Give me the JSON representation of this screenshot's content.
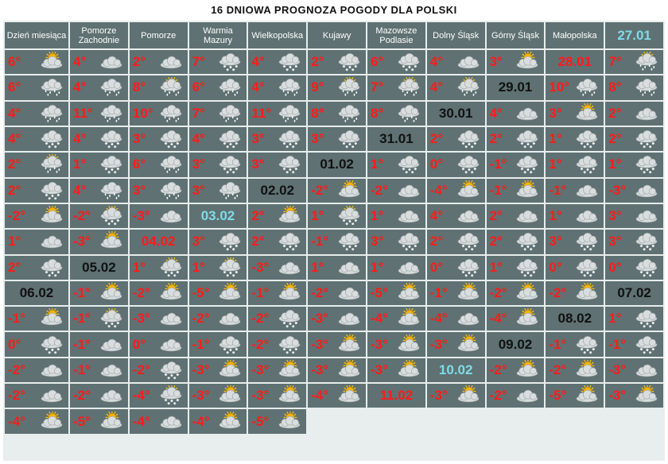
{
  "title": "16 DNIOWA PROGNOZA POGODY DLA POLSKI",
  "chart_data": {
    "type": "table",
    "header": {
      "date_label": "Dzień miesiąca",
      "regions": [
        "Pomorze Zachodnie",
        "Pomorze",
        "Warmia Mazury",
        "Wielkopolska",
        "Kujawy",
        "Mazowsze Podlasie",
        "Dolny Śląsk",
        "Górny Śląsk",
        "Małopolska"
      ]
    },
    "rows": [
      {
        "date": "27.01",
        "date_color": "cyan",
        "temps": [
          "6°",
          "4°",
          "2°",
          "7°",
          "4°",
          "2°",
          "6°",
          "4°",
          "3°"
        ],
        "icons": [
          "sun-cloud",
          "cloud",
          "cloud",
          "cloud-snow",
          "cloud-snow",
          "cloud-snow",
          "cloud-snow",
          "cloud",
          "sun-cloud"
        ]
      },
      {
        "date": "28.01",
        "date_color": "red",
        "temps": [
          "7°",
          "6°",
          "4°",
          "8°",
          "6°",
          "4°",
          "9°",
          "7°",
          "4°"
        ],
        "icons": [
          "sun-cloud-rain",
          "cloud-rain",
          "cloud-rain",
          "sun-cloud-rain",
          "cloud-rain",
          "cloud-rain",
          "sun-cloud-rain",
          "sun-cloud-rain",
          "sun-cloud-rain"
        ]
      },
      {
        "date": "29.01",
        "date_color": "black",
        "temps": [
          "10°",
          "8°",
          "4°",
          "11°",
          "10°",
          "7°",
          "11°",
          "8°",
          "8°"
        ],
        "icons": [
          "cloud-rain",
          "cloud-rain",
          "cloud-rain",
          "cloud-rain",
          "cloud-rain",
          "cloud-rain",
          "cloud-rain",
          "cloud-rain",
          "cloud-rain"
        ]
      },
      {
        "date": "30.01",
        "date_color": "black",
        "temps": [
          "4°",
          "3°",
          "2°",
          "4°",
          "4°",
          "3°",
          "4°",
          "3°",
          "3°"
        ],
        "icons": [
          "cloud",
          "sun-cloud",
          "cloud",
          "cloud-snow",
          "cloud-snow",
          "cloud-snow",
          "cloud-snow",
          "cloud-snow",
          "cloud-snow"
        ]
      },
      {
        "date": "31.01",
        "date_color": "black",
        "temps": [
          "2°",
          "2°",
          "1°",
          "2°",
          "2°",
          "1°",
          "6°",
          "3°",
          "3°"
        ],
        "icons": [
          "cloud-snow",
          "cloud-snow",
          "cloud-snow",
          "cloud-snow",
          "sun-cloud-rain",
          "cloud-snow",
          "cloud-rain",
          "cloud-snow",
          "cloud-snow"
        ]
      },
      {
        "date": "01.02",
        "date_color": "black",
        "temps": [
          "1°",
          "0°",
          "-1°",
          "1°",
          "1°",
          "2°",
          "4°",
          "3°",
          "3°"
        ],
        "icons": [
          "cloud-snow",
          "cloud-snow",
          "cloud-snow",
          "cloud-snow",
          "cloud-snow",
          "cloud-snow",
          "cloud-rain",
          "cloud-rain",
          "cloud-rain"
        ]
      },
      {
        "date": "02.02",
        "date_color": "black",
        "temps": [
          "-2°",
          "-2°",
          "-4°",
          "-1°",
          "-1°",
          "-3°",
          "-2°",
          "-2°",
          "-3°"
        ],
        "icons": [
          "sun-cloud",
          "cloud",
          "sun-cloud",
          "sun-cloud",
          "cloud",
          "cloud",
          "sun-cloud",
          "sun-cloud-snow",
          "cloud"
        ]
      },
      {
        "date": "03.02",
        "date_color": "cyan",
        "temps": [
          "2°",
          "1°",
          "1°",
          "4°",
          "2°",
          "1°",
          "3°",
          "1°",
          "-3°"
        ],
        "icons": [
          "sun-cloud",
          "sun-cloud-snow",
          "cloud",
          "cloud",
          "cloud",
          "cloud",
          "cloud",
          "cloud",
          "sun-cloud"
        ]
      },
      {
        "date": "04.02",
        "date_color": "red",
        "temps": [
          "3°",
          "2°",
          "-1°",
          "3°",
          "2°",
          "2°",
          "3°",
          "3°",
          "2°"
        ],
        "icons": [
          "cloud-snow",
          "cloud-snow",
          "cloud-snow",
          "cloud-snow",
          "cloud-snow",
          "cloud-snow",
          "cloud-snow",
          "cloud-snow",
          "cloud-snow"
        ]
      },
      {
        "date": "05.02",
        "date_color": "black",
        "temps": [
          "1°",
          "1°",
          "-3°",
          "1°",
          "1°",
          "0°",
          "1°",
          "0°",
          "0°"
        ],
        "icons": [
          "sun-cloud-snow",
          "sun-cloud-snow",
          "cloud",
          "cloud",
          "cloud",
          "cloud-snow",
          "cloud-snow",
          "cloud-snow",
          "cloud-snow"
        ]
      },
      {
        "date": "06.02",
        "date_color": "black",
        "temps": [
          "-1°",
          "-2°",
          "-5°",
          "-1°",
          "-2°",
          "-5°",
          "-1°",
          "-2°",
          "-2°"
        ],
        "icons": [
          "sun-cloud",
          "sun-cloud",
          "sun-cloud",
          "sun-cloud",
          "cloud",
          "sun-cloud",
          "sun-cloud",
          "sun-cloud",
          "sun-cloud"
        ]
      },
      {
        "date": "07.02",
        "date_color": "black",
        "temps": [
          "-1°",
          "-1°",
          "-3°",
          "-2°",
          "-2°",
          "-3°",
          "-4°",
          "-4°",
          "-4°"
        ],
        "icons": [
          "sun-cloud",
          "sun-cloud-snow",
          "cloud",
          "cloud",
          "cloud-snow",
          "cloud",
          "sun-cloud",
          "cloud",
          "sun-cloud"
        ]
      },
      {
        "date": "08.02",
        "date_color": "black",
        "temps": [
          "1°",
          "0°",
          "-1°",
          "0°",
          "-1°",
          "-2°",
          "-3°",
          "-3°",
          "-3°"
        ],
        "icons": [
          "cloud-snow",
          "cloud-snow",
          "cloud",
          "cloud",
          "cloud-snow",
          "cloud-snow",
          "sun-cloud",
          "sun-cloud",
          "sun-cloud"
        ]
      },
      {
        "date": "09.02",
        "date_color": "black",
        "temps": [
          "-1°",
          "-1°",
          "-2°",
          "-1°",
          "-2°",
          "-3°",
          "-3°",
          "-3°",
          "-3°"
        ],
        "icons": [
          "cloud-snow",
          "cloud-snow",
          "cloud",
          "cloud",
          "cloud-snow",
          "sun-cloud",
          "sun-cloud",
          "sun-cloud",
          "sun-cloud"
        ]
      },
      {
        "date": "10.02",
        "date_color": "cyan",
        "temps": [
          "-2°",
          "-2°",
          "-3°",
          "-2°",
          "-2°",
          "-4°",
          "-3°",
          "-3°",
          "-4°"
        ],
        "icons": [
          "sun-cloud",
          "sun-cloud",
          "cloud",
          "cloud",
          "cloud",
          "sun-cloud-snow",
          "sun-cloud",
          "sun-cloud",
          "sun-cloud"
        ]
      },
      {
        "date": "11.02",
        "date_color": "red",
        "temps": [
          "-3°",
          "-2°",
          "-5°",
          "-3°",
          "-4°",
          "-5°",
          "-4°",
          "-4°",
          "-5°"
        ],
        "icons": [
          "sun-cloud",
          "cloud",
          "sun-cloud",
          "sun-cloud",
          "sun-cloud",
          "sun-cloud",
          "cloud",
          "sun-cloud",
          "sun-cloud"
        ]
      }
    ]
  },
  "colors": {
    "cell_bg": "#5f7172",
    "temp": "#ff1a1a",
    "date_black": "#111111",
    "date_red": "#ff1a1a",
    "date_cyan": "#7fdce8",
    "header_text": "#ffffff"
  }
}
